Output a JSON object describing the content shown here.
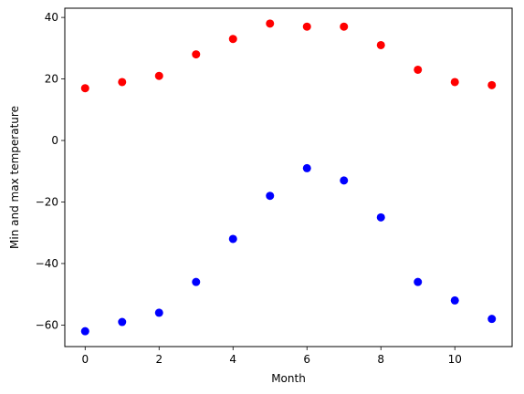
{
  "chart_data": {
    "type": "scatter",
    "xlabel": "Month",
    "ylabel": "Min and max temperature",
    "xlim": [
      -0.55,
      11.55
    ],
    "ylim": [
      -67,
      43
    ],
    "xticks": [
      0,
      2,
      4,
      6,
      8,
      10
    ],
    "yticks": [
      -60,
      -40,
      -20,
      0,
      20,
      40
    ],
    "grid": false,
    "series": [
      {
        "color": "#ff0000",
        "x": [
          0,
          1,
          2,
          3,
          4,
          5,
          6,
          7,
          8,
          9,
          10,
          11
        ],
        "y": [
          17,
          19,
          21,
          28,
          33,
          38,
          37,
          37,
          31,
          23,
          19,
          18
        ]
      },
      {
        "color": "#0000ff",
        "x": [
          0,
          1,
          2,
          3,
          4,
          5,
          6,
          7,
          8,
          9,
          10,
          11
        ],
        "y": [
          -62,
          -59,
          -56,
          -46,
          -32,
          -18,
          -9,
          -13,
          -25,
          -46,
          -52,
          -58
        ]
      }
    ]
  }
}
